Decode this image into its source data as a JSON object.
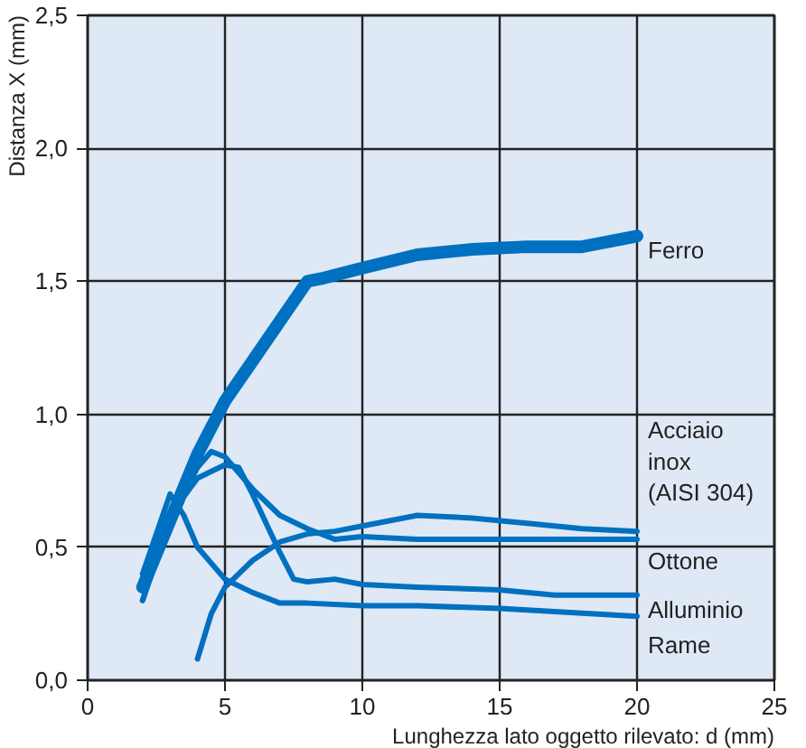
{
  "chart_data": {
    "type": "line",
    "xlabel": "Lunghezza lato oggetto rilevato: d (mm)",
    "ylabel": "Distanza X (mm)",
    "xlim": [
      0,
      25
    ],
    "ylim": [
      0,
      2.5
    ],
    "xticks": [
      0,
      5,
      10,
      15,
      20,
      25
    ],
    "yticks": [
      {
        "value": 0,
        "label": "0,0"
      },
      {
        "value": 0.5,
        "label": "0,5"
      },
      {
        "value": 1,
        "label": "1,0"
      },
      {
        "value": 1.5,
        "label": "1,5"
      },
      {
        "value": 2,
        "label": "2,0"
      },
      {
        "value": 2.5,
        "label": "2,5"
      }
    ],
    "grid": true,
    "legend": false,
    "marker": "none",
    "line_style": "solid",
    "series": [
      {
        "name": "Ferro",
        "color": "#0070c0",
        "x": [
          2,
          3,
          4,
          5,
          6,
          7,
          8,
          8.5,
          10,
          12,
          14,
          16,
          18,
          20
        ],
        "values": [
          0.35,
          0.6,
          0.85,
          1.05,
          1.2,
          1.35,
          1.5,
          1.51,
          1.55,
          1.6,
          1.62,
          1.63,
          1.63,
          1.67
        ]
      },
      {
        "name": "Acciaio\ninox\n(AISI 304)",
        "color": "#0070c0",
        "x": [
          4,
          4.5,
          5,
          6,
          7,
          8,
          9,
          10,
          12,
          14,
          16,
          18,
          20
        ],
        "values": [
          0.08,
          0.25,
          0.35,
          0.45,
          0.52,
          0.55,
          0.56,
          0.58,
          0.62,
          0.61,
          0.59,
          0.57,
          0.56
        ]
      },
      {
        "name": "Ottone",
        "color": "#0070c0",
        "x": [
          2,
          3,
          4,
          4.5,
          5,
          6,
          7,
          8,
          9,
          10,
          12,
          15,
          20
        ],
        "values": [
          0.3,
          0.6,
          0.8,
          0.86,
          0.84,
          0.72,
          0.62,
          0.57,
          0.53,
          0.54,
          0.53,
          0.53,
          0.53
        ]
      },
      {
        "name": "Alluminio",
        "color": "#0070c0",
        "x": [
          2,
          3,
          4,
          5,
          5.5,
          6,
          7,
          7.5,
          8,
          9,
          10,
          12,
          15,
          17,
          20
        ],
        "values": [
          0.3,
          0.62,
          0.76,
          0.81,
          0.8,
          0.7,
          0.48,
          0.38,
          0.37,
          0.38,
          0.36,
          0.35,
          0.34,
          0.32,
          0.32
        ]
      },
      {
        "name": "Rame",
        "color": "#0070c0",
        "x": [
          2,
          3,
          3.5,
          4,
          5,
          6,
          7,
          8,
          10,
          12,
          15,
          20
        ],
        "values": [
          0.4,
          0.7,
          0.62,
          0.5,
          0.38,
          0.33,
          0.29,
          0.29,
          0.28,
          0.28,
          0.27,
          0.24
        ]
      }
    ]
  }
}
